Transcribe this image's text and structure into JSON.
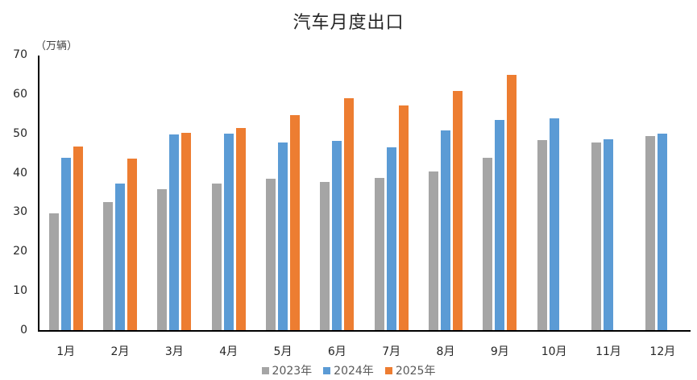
{
  "chart_data": {
    "type": "bar",
    "title": "汽车月度出口",
    "ylabel": "（万辆）",
    "xlabel": "",
    "ylim": [
      0,
      70
    ],
    "yticks": [
      0,
      10,
      20,
      30,
      40,
      50,
      60,
      70
    ],
    "grid": false,
    "legend_position": "bottom",
    "categories": [
      "1月",
      "2月",
      "3月",
      "4月",
      "5月",
      "6月",
      "7月",
      "8月",
      "9月",
      "10月",
      "11月",
      "12月"
    ],
    "series": [
      {
        "name": "2023年",
        "color": "#A5A5A5",
        "values": [
          30.1,
          32.9,
          36.2,
          37.6,
          38.9,
          38.1,
          39.0,
          40.7,
          44.3,
          48.7,
          48.1,
          49.8
        ]
      },
      {
        "name": "2024年",
        "color": "#5B9BD5",
        "values": [
          44.2,
          37.7,
          50.1,
          50.4,
          48.1,
          48.5,
          46.8,
          51.2,
          53.8,
          54.2,
          48.9,
          50.4
        ]
      },
      {
        "name": "2025年",
        "color": "#ED7D31",
        "values": [
          47.1,
          44.0,
          50.5,
          51.7,
          55.1,
          59.3,
          57.5,
          61.1,
          65.2,
          null,
          null,
          null
        ]
      }
    ]
  }
}
